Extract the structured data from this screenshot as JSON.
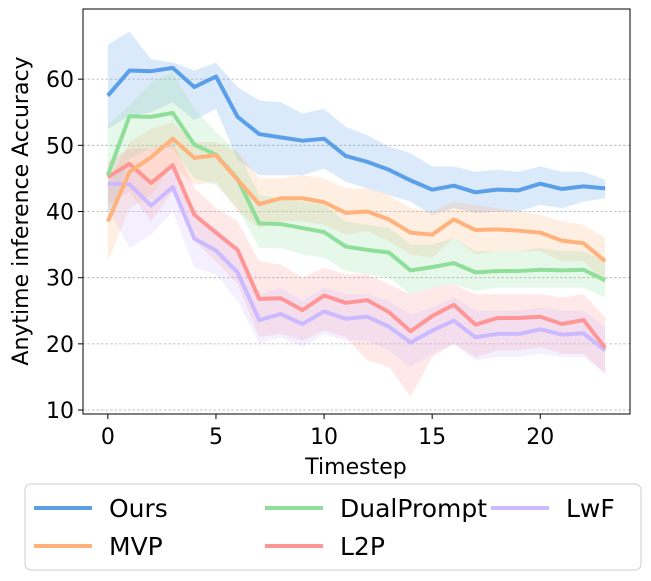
{
  "chart_data": {
    "type": "line",
    "title": "",
    "xlabel": "Timestep",
    "ylabel": "Anytime inference Accuracy",
    "xlim": [
      -1.15,
      24.15
    ],
    "ylim": [
      9.4,
      70.6
    ],
    "x_ticks": [
      0,
      5,
      10,
      15,
      20
    ],
    "y_ticks": [
      10,
      20,
      30,
      40,
      50,
      60
    ],
    "grid": "horizontal-dashed",
    "legend_position": "bottom-outside",
    "x": [
      0,
      1,
      2,
      3,
      4,
      5,
      6,
      7,
      8,
      9,
      10,
      11,
      12,
      13,
      14,
      15,
      16,
      17,
      18,
      19,
      20,
      21,
      22,
      23
    ],
    "series": [
      {
        "name": "Ours",
        "color": "#5b9fe8",
        "values": [
          57.5,
          61.3,
          61.2,
          61.7,
          58.8,
          60.4,
          54.3,
          51.7,
          51.2,
          50.7,
          51.0,
          48.4,
          47.5,
          46.3,
          44.7,
          43.3,
          43.9,
          42.9,
          43.3,
          43.2,
          44.2,
          43.4,
          43.8,
          43.5
        ],
        "upper": [
          65.2,
          67.2,
          63.0,
          62.5,
          61.3,
          62.5,
          58.8,
          56.8,
          56.5,
          54.8,
          55.5,
          52.8,
          51.5,
          49.8,
          48.8,
          46.8,
          46.8,
          46.0,
          46.3,
          46.0,
          46.8,
          46.0,
          46.0,
          44.8
        ],
        "lower": [
          52.5,
          54.5,
          55.0,
          56.5,
          53.8,
          55.5,
          47.8,
          45.5,
          45.5,
          45.5,
          46.5,
          44.5,
          43.5,
          42.5,
          41.5,
          39.5,
          40.5,
          39.8,
          40.0,
          40.0,
          41.0,
          40.5,
          41.5,
          42.0
        ]
      },
      {
        "name": "MVP",
        "color": "#ffb27b",
        "values": [
          38.5,
          46.0,
          48.2,
          51.0,
          48.1,
          48.5,
          44.8,
          41.1,
          42.0,
          42.0,
          41.4,
          39.8,
          40.0,
          38.8,
          36.8,
          36.5,
          38.8,
          37.2,
          37.3,
          37.1,
          36.8,
          35.6,
          35.2,
          32.5
        ],
        "upper": [
          44.5,
          50.5,
          52.5,
          53.5,
          50.5,
          50.5,
          49.0,
          45.0,
          45.0,
          45.5,
          45.0,
          43.5,
          43.5,
          42.5,
          40.5,
          40.0,
          41.5,
          41.0,
          40.5,
          40.0,
          39.5,
          38.5,
          38.0,
          36.0
        ],
        "lower": [
          32.5,
          40.5,
          42.5,
          47.0,
          44.0,
          44.5,
          40.0,
          37.5,
          38.5,
          38.5,
          38.0,
          36.5,
          37.0,
          35.5,
          33.5,
          33.0,
          36.0,
          33.5,
          34.0,
          34.0,
          34.0,
          32.5,
          32.5,
          29.0
        ]
      },
      {
        "name": "DualPrompt",
        "color": "#8fdf9b",
        "values": [
          45.5,
          54.4,
          54.3,
          54.9,
          50.1,
          48.6,
          44.9,
          38.2,
          38.1,
          37.5,
          36.9,
          34.7,
          34.2,
          33.8,
          31.1,
          31.6,
          32.2,
          30.8,
          31.0,
          31.0,
          31.2,
          31.1,
          31.2,
          29.6
        ],
        "upper": [
          53.0,
          56.0,
          59.5,
          61.0,
          55.5,
          52.0,
          49.0,
          42.5,
          42.0,
          41.5,
          41.0,
          38.5,
          38.0,
          37.5,
          35.0,
          35.0,
          36.0,
          34.0,
          34.0,
          34.0,
          34.5,
          34.0,
          34.0,
          32.5
        ],
        "lower": [
          38.0,
          48.0,
          49.5,
          49.5,
          45.0,
          44.0,
          40.5,
          34.5,
          34.5,
          33.5,
          33.0,
          31.0,
          30.5,
          30.0,
          27.5,
          28.5,
          29.0,
          28.0,
          28.5,
          28.5,
          28.5,
          28.5,
          28.5,
          27.0
        ]
      },
      {
        "name": "L2P",
        "color": "#ff9696",
        "values": [
          45.2,
          47.2,
          44.3,
          47.0,
          39.5,
          36.8,
          34.2,
          26.8,
          26.9,
          25.1,
          27.3,
          26.2,
          26.6,
          24.8,
          21.9,
          24.2,
          25.9,
          22.9,
          23.9,
          23.9,
          24.1,
          23.0,
          23.6,
          19.4
        ],
        "upper": [
          47.5,
          49.5,
          49.5,
          50.5,
          43.5,
          40.5,
          38.5,
          32.5,
          32.0,
          30.0,
          31.5,
          30.5,
          30.5,
          29.0,
          27.5,
          28.5,
          29.0,
          27.5,
          27.5,
          27.5,
          27.5,
          27.0,
          27.5,
          24.0
        ],
        "lower": [
          41.0,
          43.0,
          38.5,
          43.0,
          35.5,
          32.5,
          29.0,
          21.0,
          21.5,
          20.5,
          22.0,
          21.0,
          17.5,
          16.5,
          12.0,
          18.0,
          20.0,
          18.0,
          19.0,
          19.0,
          19.5,
          18.5,
          18.5,
          15.5
        ]
      },
      {
        "name": "LwF",
        "color": "#cbbaff",
        "values": [
          44.2,
          44.1,
          40.9,
          43.7,
          35.9,
          34.1,
          30.8,
          23.6,
          24.5,
          23.0,
          24.9,
          23.8,
          24.1,
          22.6,
          20.2,
          22.0,
          23.5,
          21.0,
          21.5,
          21.5,
          22.2,
          21.4,
          21.6,
          19.0
        ],
        "upper": [
          44.5,
          47.5,
          43.5,
          46.5,
          39.5,
          37.5,
          34.5,
          27.5,
          28.5,
          26.5,
          28.5,
          27.5,
          27.5,
          26.5,
          24.5,
          25.5,
          27.0,
          25.0,
          25.0,
          25.0,
          25.5,
          25.0,
          25.0,
          22.5
        ],
        "lower": [
          40.5,
          34.5,
          36.5,
          40.0,
          31.5,
          30.5,
          26.5,
          20.0,
          21.0,
          19.5,
          21.5,
          20.5,
          20.5,
          19.0,
          16.5,
          18.5,
          20.0,
          17.5,
          18.0,
          18.0,
          18.5,
          18.0,
          18.0,
          15.5
        ]
      }
    ],
    "legend": [
      {
        "label": "Ours",
        "series": 0
      },
      {
        "label": "MVP",
        "series": 1
      },
      {
        "label": "DualPrompt",
        "series": 2
      },
      {
        "label": "L2P",
        "series": 3
      },
      {
        "label": "LwF",
        "series": 4
      }
    ]
  }
}
